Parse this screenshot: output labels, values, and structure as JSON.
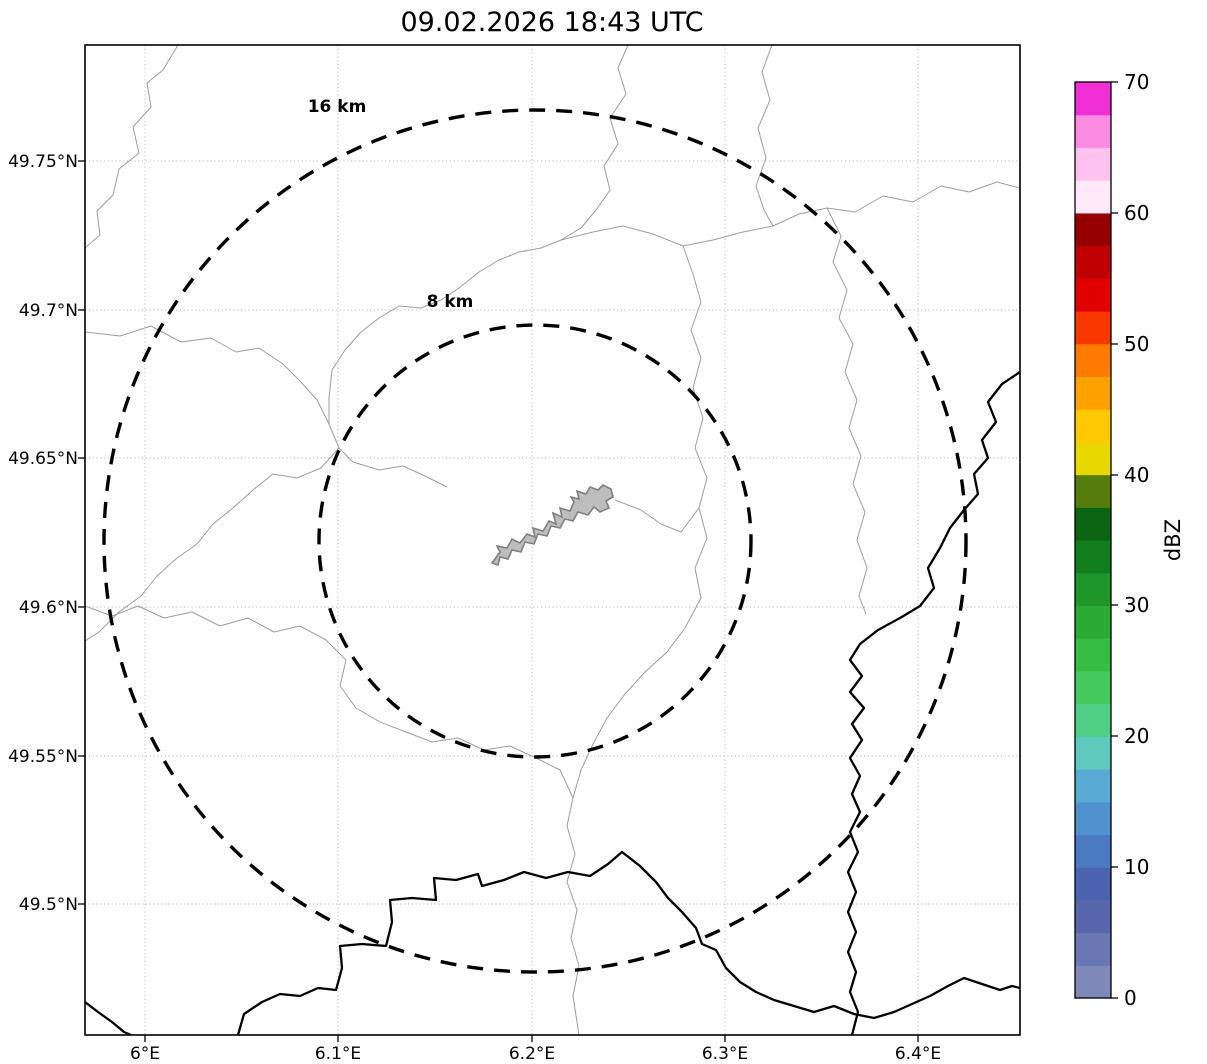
{
  "title": "09.02.2026 18:43 UTC",
  "map": {
    "range_rings": [
      {
        "label": "16 km",
        "radius_km": 16
      },
      {
        "label": "8 km",
        "radius_km": 8
      }
    ],
    "x_ticks": [
      "6°E",
      "6.1°E",
      "6.2°E",
      "6.3°E",
      "6.4°E"
    ],
    "y_ticks": [
      "49.75°N",
      "49.7°N",
      "49.65°N",
      "49.6°N",
      "49.55°N",
      "49.5°N"
    ]
  },
  "colorbar": {
    "label": "dBZ",
    "min": 0,
    "max": 70,
    "tick_labels_top_to_bottom": [
      "70",
      "60",
      "50",
      "40",
      "30",
      "20",
      "10",
      "0"
    ],
    "colors_bottom_to_top": [
      "#7e88b9",
      "#6b77b3",
      "#5867ad",
      "#4c64b0",
      "#4b7ac2",
      "#5092cd",
      "#59aad5",
      "#5fc9be",
      "#52cf86",
      "#45c95c",
      "#37bd42",
      "#2aab35",
      "#1e9629",
      "#127d1d",
      "#0a6613",
      "#567c0e",
      "#e8d800",
      "#ffc800",
      "#ffa200",
      "#ff7a00",
      "#f93800",
      "#e00000",
      "#c00000",
      "#970000",
      "#ffe9f8",
      "#ffc2ee",
      "#fb8ce2",
      "#ef2ed5"
    ]
  },
  "chart_data": {
    "type": "heatmap",
    "title": "09.02.2026 18:43 UTC",
    "xlabel": "",
    "ylabel": "",
    "x_tick_labels": [
      "6°E",
      "6.1°E",
      "6.2°E",
      "6.3°E",
      "6.4°E"
    ],
    "y_tick_labels": [
      "49.75°N",
      "49.7°N",
      "49.65°N",
      "49.6°N",
      "49.55°N",
      "49.5°N"
    ],
    "lon_range_deg_e": [
      5.97,
      6.45
    ],
    "lat_range_deg_n": [
      49.46,
      49.79
    ],
    "colorbar": {
      "label": "dBZ",
      "range": [
        0,
        70
      ],
      "ticks": [
        0,
        10,
        20,
        30,
        40,
        50,
        60,
        70
      ]
    },
    "range_rings_km": [
      8,
      16
    ],
    "reflectivity_echoes": [],
    "grid": "dotted"
  }
}
